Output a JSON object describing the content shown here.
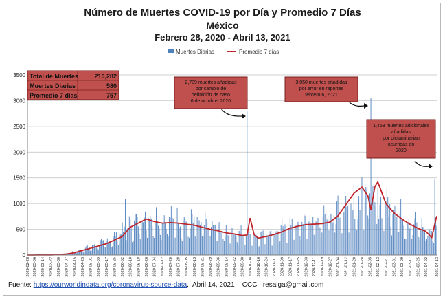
{
  "titles": {
    "title": "Número de Muertes COVID-19 por Día y Promedio 7 Días",
    "subtitle": "México",
    "date_range": "Febrero 28, 2020 - Abril 13, 2021"
  },
  "legend": {
    "daily": "Muertes Diarias",
    "avg": "Promedio 7 días"
  },
  "summary_box": {
    "rows": [
      {
        "label": "Total de Muertes",
        "value": "210,282"
      },
      {
        "label": "Muertes Diarias",
        "value": "580"
      },
      {
        "label": "Promedio 7 días",
        "value": "757"
      }
    ]
  },
  "annotations": [
    {
      "lines": [
        "2,789 muertes añadidas",
        "por cambio de",
        "definición de caso",
        "6 de octubre, 2020"
      ]
    },
    {
      "lines": [
        "3,050 muertes añadidas",
        "por error en reportes",
        "febrero 6, 2021"
      ]
    },
    {
      "lines": [
        "1,468 muertes adicionales",
        "añadidas",
        "por dictaminarian",
        "ocurridas en",
        "2020"
      ]
    }
  ],
  "footer": {
    "prefix": "Fuente:",
    "link": "https://ourworldindata.org/coronavirus-source-data",
    "date": "Abril 14, 2021",
    "credit": "CCC",
    "email": "resalga@gmail.com"
  },
  "colors": {
    "bar": "#4f81bd",
    "avg": "#c0272d",
    "box_fill": "#c0504d",
    "box_border": "#7a1f1f"
  },
  "chart_data": {
    "type": "bar",
    "ylim": [
      0,
      3500
    ],
    "yticks": [
      0,
      500,
      1000,
      1500,
      2000,
      2500,
      3000,
      3500
    ],
    "xlabel": "",
    "ylabel": "",
    "grid": true,
    "legend_position": "top-center",
    "x_tick_labels": [
      "2020-02-28",
      "2020-03-06",
      "2020-03-14",
      "2020-03-22",
      "2020-03-30",
      "2020-04-07",
      "2020-04-15",
      "2020-04-23",
      "2020-05-01",
      "2020-05-09",
      "2020-05-17",
      "2020-05-25",
      "2020-06-02",
      "2020-06-10",
      "2020-06-18",
      "2020-06-26",
      "2020-07-04",
      "2020-07-12",
      "2020-07-20",
      "2020-07-28",
      "2020-08-05",
      "2020-08-13",
      "2020-08-21",
      "2020-08-29",
      "2020-09-06",
      "2020-09-14",
      "2020-09-22",
      "2020-09-30",
      "2020-10-08",
      "2020-10-16",
      "2020-10-24",
      "2020-11-01",
      "2020-11-09",
      "2020-11-17",
      "2020-11-25",
      "2020-12-03",
      "2020-12-11",
      "2020-12-19",
      "2020-12-27",
      "2021-01-04",
      "2021-01-12",
      "2021-01-20",
      "2021-01-28",
      "2021-02-05",
      "2021-02-13",
      "2021-02-21",
      "2021-03-01",
      "2021-03-09",
      "2021-03-17",
      "2021-03-25",
      "2021-04-02",
      "2021-04-13"
    ],
    "series": [
      {
        "name": "Muertes Diarias",
        "type": "bar",
        "points": [
          [
            "2020-02-28",
            0
          ],
          [
            "2020-03-14",
            0
          ],
          [
            "2020-03-22",
            3
          ],
          [
            "2020-03-30",
            12
          ],
          [
            "2020-04-07",
            25
          ],
          [
            "2020-04-15",
            60
          ],
          [
            "2020-04-23",
            110
          ],
          [
            "2020-05-01",
            150
          ],
          [
            "2020-05-09",
            200
          ],
          [
            "2020-05-17",
            250
          ],
          [
            "2020-05-25",
            330
          ],
          [
            "2020-06-02",
            420
          ],
          [
            "2020-06-05",
            1092
          ],
          [
            "2020-06-10",
            560
          ],
          [
            "2020-06-18",
            620
          ],
          [
            "2020-06-26",
            720
          ],
          [
            "2020-07-04",
            680
          ],
          [
            "2020-07-12",
            640
          ],
          [
            "2020-07-20",
            650
          ],
          [
            "2020-07-28",
            640
          ],
          [
            "2020-08-05",
            620
          ],
          [
            "2020-08-13",
            610
          ],
          [
            "2020-08-21",
            560
          ],
          [
            "2020-08-29",
            520
          ],
          [
            "2020-09-06",
            480
          ],
          [
            "2020-09-14",
            440
          ],
          [
            "2020-09-22",
            420
          ],
          [
            "2020-09-30",
            400
          ],
          [
            "2020-10-05",
            2789
          ],
          [
            "2020-10-08",
            380
          ],
          [
            "2020-10-16",
            380
          ],
          [
            "2020-10-24",
            390
          ],
          [
            "2020-11-01",
            420
          ],
          [
            "2020-11-09",
            480
          ],
          [
            "2020-11-17",
            540
          ],
          [
            "2020-11-25",
            590
          ],
          [
            "2020-12-03",
            610
          ],
          [
            "2020-12-11",
            620
          ],
          [
            "2020-12-19",
            640
          ],
          [
            "2020-12-27",
            720
          ],
          [
            "2021-01-04",
            900
          ],
          [
            "2021-01-12",
            1150
          ],
          [
            "2021-01-20",
            1400
          ],
          [
            "2021-01-28",
            1520
          ],
          [
            "2021-02-05",
            1200
          ],
          [
            "2021-02-06",
            3050
          ],
          [
            "2021-02-13",
            1300
          ],
          [
            "2021-02-21",
            1050
          ],
          [
            "2021-03-01",
            880
          ],
          [
            "2021-03-09",
            720
          ],
          [
            "2021-03-17",
            620
          ],
          [
            "2021-03-25",
            560
          ],
          [
            "2021-04-02",
            480
          ],
          [
            "2021-04-08",
            400
          ],
          [
            "2021-04-11",
            1468
          ],
          [
            "2021-04-13",
            580
          ]
        ]
      },
      {
        "name": "Promedio 7 días",
        "type": "line",
        "points": [
          [
            "2020-02-28",
            0
          ],
          [
            "2020-03-22",
            2
          ],
          [
            "2020-03-30",
            8
          ],
          [
            "2020-04-07",
            20
          ],
          [
            "2020-04-15",
            45
          ],
          [
            "2020-04-23",
            90
          ],
          [
            "2020-05-01",
            130
          ],
          [
            "2020-05-09",
            175
          ],
          [
            "2020-05-17",
            220
          ],
          [
            "2020-05-25",
            290
          ],
          [
            "2020-06-02",
            360
          ],
          [
            "2020-06-10",
            540
          ],
          [
            "2020-06-18",
            620
          ],
          [
            "2020-06-26",
            700
          ],
          [
            "2020-07-04",
            650
          ],
          [
            "2020-07-12",
            620
          ],
          [
            "2020-07-20",
            630
          ],
          [
            "2020-07-28",
            620
          ],
          [
            "2020-08-05",
            600
          ],
          [
            "2020-08-13",
            580
          ],
          [
            "2020-08-21",
            540
          ],
          [
            "2020-08-29",
            500
          ],
          [
            "2020-09-06",
            470
          ],
          [
            "2020-09-14",
            430
          ],
          [
            "2020-09-22",
            410
          ],
          [
            "2020-09-30",
            380
          ],
          [
            "2020-10-05",
            390
          ],
          [
            "2020-10-08",
            720
          ],
          [
            "2020-10-12",
            400
          ],
          [
            "2020-10-16",
            330
          ],
          [
            "2020-10-24",
            360
          ],
          [
            "2020-11-01",
            400
          ],
          [
            "2020-11-09",
            450
          ],
          [
            "2020-11-17",
            520
          ],
          [
            "2020-11-25",
            560
          ],
          [
            "2020-12-03",
            590
          ],
          [
            "2020-12-11",
            600
          ],
          [
            "2020-12-19",
            610
          ],
          [
            "2020-12-27",
            640
          ],
          [
            "2021-01-04",
            760
          ],
          [
            "2021-01-12",
            980
          ],
          [
            "2021-01-20",
            1200
          ],
          [
            "2021-01-28",
            1320
          ],
          [
            "2021-02-03",
            1150
          ],
          [
            "2021-02-06",
            880
          ],
          [
            "2021-02-10",
            1330
          ],
          [
            "2021-02-13",
            1420
          ],
          [
            "2021-02-21",
            1000
          ],
          [
            "2021-03-01",
            820
          ],
          [
            "2021-03-09",
            700
          ],
          [
            "2021-03-17",
            600
          ],
          [
            "2021-03-25",
            520
          ],
          [
            "2021-04-02",
            460
          ],
          [
            "2021-04-08",
            340
          ],
          [
            "2021-04-11",
            600
          ],
          [
            "2021-04-13",
            757
          ]
        ]
      }
    ]
  }
}
